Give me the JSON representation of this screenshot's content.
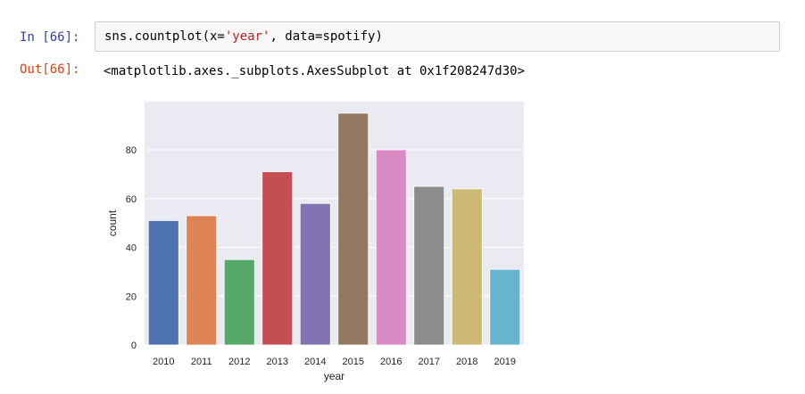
{
  "cell": {
    "in_prompt": "In [66]:",
    "code_plain_1": "sns.countplot(x=",
    "code_string": "'year'",
    "code_plain_2": ", data=spotify)",
    "out_prompt": "Out[66]:",
    "output_text": "<matplotlib.axes._subplots.AxesSubplot at 0x1f208247d30>"
  },
  "chart_data": {
    "type": "bar",
    "categories": [
      "2010",
      "2011",
      "2012",
      "2013",
      "2014",
      "2015",
      "2016",
      "2017",
      "2018",
      "2019"
    ],
    "values": [
      51,
      53,
      35,
      71,
      58,
      95,
      80,
      65,
      64,
      31
    ],
    "colors": [
      "#4c72b0",
      "#dd8452",
      "#55a868",
      "#c44e52",
      "#8172b3",
      "#937860",
      "#da8bc3",
      "#8c8c8c",
      "#ccb974",
      "#64b5cd"
    ],
    "xlabel": "year",
    "ylabel": "count",
    "ylim": [
      0,
      99.75
    ],
    "yticks": [
      0,
      20,
      40,
      60,
      80
    ],
    "grid": true,
    "background": "#eaeaf2"
  }
}
